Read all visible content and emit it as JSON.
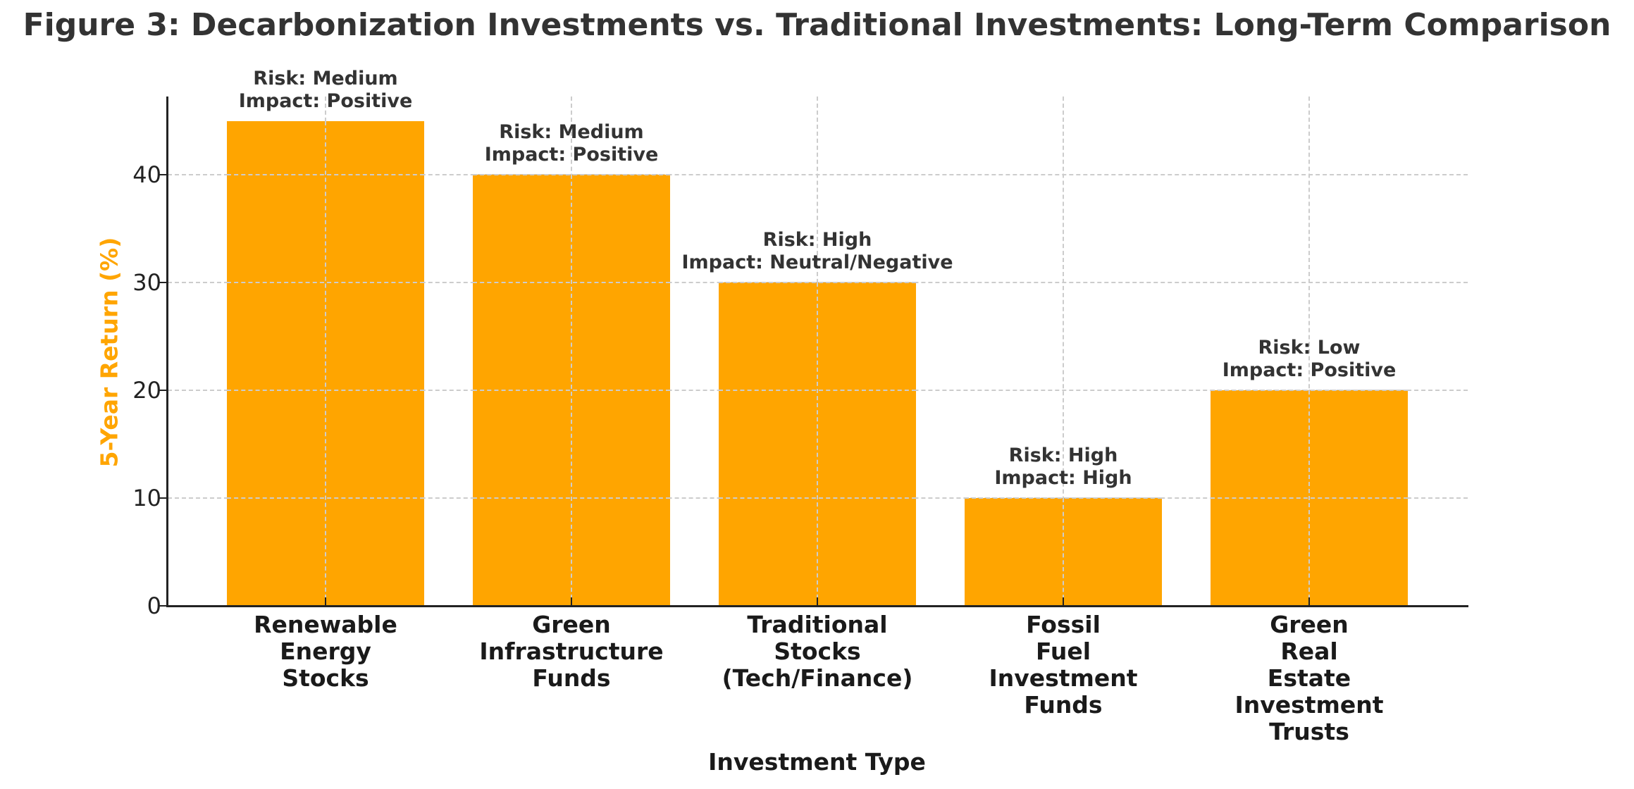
{
  "chart_data": {
    "type": "bar",
    "title": "Figure 3: Decarbonization Investments vs. Traditional Investments: Long-Term Comparison",
    "xlabel": "Investment Type",
    "ylabel": "5-Year Return (%)",
    "categories": [
      "Renewable Energy Stocks",
      "Green Infrastructure Funds",
      "Traditional Stocks (Tech/Finance)",
      "Fossil Fuel Investment Funds",
      "Green Real Estate Investment Trusts"
    ],
    "category_lines": [
      [
        "Renewable",
        "Energy",
        "Stocks"
      ],
      [
        "Green",
        "Infrastructure",
        "Funds"
      ],
      [
        "Traditional",
        "Stocks",
        "(Tech/Finance)"
      ],
      [
        "Fossil",
        "Fuel",
        "Investment",
        "Funds"
      ],
      [
        "Green",
        "Real",
        "Estate",
        "Investment",
        "Trusts"
      ]
    ],
    "values": [
      45,
      40,
      30,
      10,
      20
    ],
    "annotations": [
      {
        "risk": "Risk: Medium",
        "impact": "Impact: Positive"
      },
      {
        "risk": "Risk: Medium",
        "impact": "Impact: Positive"
      },
      {
        "risk": "Risk: High",
        "impact": "Impact: Neutral/Negative"
      },
      {
        "risk": "Risk: High",
        "impact": "Impact: High"
      },
      {
        "risk": "Risk: Low",
        "impact": "Impact: Positive"
      }
    ],
    "yticks": [
      0,
      10,
      20,
      30,
      40
    ],
    "ytick_labels": [
      "0",
      "10",
      "20",
      "30",
      "40"
    ],
    "ylim": [
      0,
      47.25
    ],
    "grid": true,
    "legend": null,
    "bar_color": "#FFA500",
    "ylabel_color": "#FFA500"
  }
}
